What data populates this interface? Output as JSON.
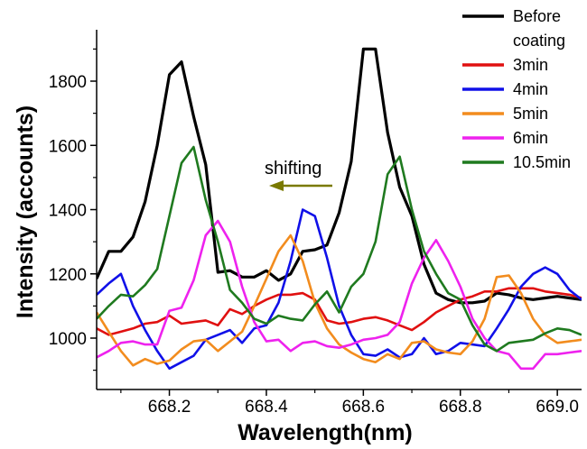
{
  "chart_data": {
    "type": "line",
    "xlabel": "Wavelength(nm)",
    "ylabel": "Intensity (accounts)",
    "xlim": [
      668.05,
      669.05
    ],
    "ylim": [
      840,
      1960
    ],
    "xticks": [
      668.2,
      668.4,
      668.6,
      668.8,
      669.0
    ],
    "xtick_labels": [
      "668.2",
      "668.4",
      "668.6",
      "668.8",
      "669.0"
    ],
    "yticks": [
      1000,
      1200,
      1400,
      1600,
      1800
    ],
    "ytick_labels": [
      "1000",
      "1200",
      "1400",
      "1600",
      "1800"
    ],
    "grid": false,
    "legend_position": "top-right",
    "annotation": {
      "text": "shifting",
      "arrow": "left",
      "color": "#7a7a00"
    },
    "x": [
      668.05,
      668.075,
      668.1,
      668.125,
      668.15,
      668.175,
      668.2,
      668.225,
      668.25,
      668.275,
      668.3,
      668.325,
      668.35,
      668.375,
      668.4,
      668.425,
      668.45,
      668.475,
      668.5,
      668.525,
      668.55,
      668.575,
      668.6,
      668.625,
      668.65,
      668.675,
      668.7,
      668.725,
      668.75,
      668.775,
      668.8,
      668.825,
      668.85,
      668.875,
      668.9,
      668.925,
      668.95,
      668.975,
      669.0,
      669.025,
      669.05
    ],
    "series": [
      {
        "name": "Before coating",
        "color": "#000000",
        "values": [
          1185,
          1270,
          1270,
          1315,
          1425,
          1600,
          1820,
          1860,
          1690,
          1540,
          1205,
          1210,
          1190,
          1190,
          1210,
          1180,
          1200,
          1270,
          1275,
          1290,
          1390,
          1550,
          1900,
          1900,
          1640,
          1470,
          1380,
          1230,
          1140,
          1120,
          1110,
          1110,
          1115,
          1140,
          1135,
          1125,
          1120,
          1125,
          1130,
          1125,
          1120
        ]
      },
      {
        "name": "3min",
        "color": "#e01010",
        "values": [
          1030,
          1010,
          1020,
          1030,
          1045,
          1050,
          1070,
          1045,
          1050,
          1055,
          1040,
          1090,
          1075,
          1100,
          1120,
          1135,
          1135,
          1140,
          1120,
          1055,
          1045,
          1050,
          1060,
          1065,
          1055,
          1040,
          1025,
          1050,
          1080,
          1100,
          1120,
          1130,
          1145,
          1145,
          1155,
          1155,
          1155,
          1145,
          1140,
          1135,
          1125
        ]
      },
      {
        "name": "4min",
        "color": "#1010e8",
        "values": [
          1135,
          1170,
          1200,
          1100,
          1025,
          960,
          905,
          925,
          945,
          995,
          1010,
          1025,
          985,
          1030,
          1040,
          1110,
          1240,
          1400,
          1380,
          1250,
          1100,
          1010,
          950,
          945,
          965,
          940,
          950,
          1000,
          950,
          960,
          985,
          980,
          975,
          1030,
          1090,
          1160,
          1200,
          1220,
          1200,
          1150,
          1120
        ]
      },
      {
        "name": "5min",
        "color": "#f28c1e",
        "values": [
          1080,
          1020,
          960,
          915,
          935,
          920,
          930,
          965,
          990,
          995,
          960,
          990,
          1020,
          1100,
          1185,
          1270,
          1320,
          1240,
          1110,
          1030,
          980,
          955,
          935,
          925,
          950,
          935,
          985,
          990,
          965,
          955,
          950,
          990,
          1060,
          1190,
          1195,
          1140,
          1060,
          1010,
          985,
          990,
          995
        ]
      },
      {
        "name": "6min",
        "color": "#ee22ee",
        "values": [
          940,
          960,
          985,
          990,
          980,
          980,
          1085,
          1095,
          1180,
          1320,
          1365,
          1300,
          1160,
          1050,
          990,
          995,
          960,
          985,
          990,
          975,
          970,
          980,
          995,
          1000,
          1010,
          1050,
          1170,
          1250,
          1305,
          1240,
          1160,
          1060,
          1000,
          960,
          950,
          905,
          905,
          950,
          950,
          955,
          960
        ]
      },
      {
        "name": "10.5min",
        "color": "#1f7a1f",
        "values": [
          1060,
          1100,
          1135,
          1130,
          1165,
          1215,
          1380,
          1545,
          1595,
          1430,
          1300,
          1150,
          1110,
          1060,
          1045,
          1070,
          1060,
          1055,
          1105,
          1145,
          1080,
          1160,
          1200,
          1300,
          1510,
          1565,
          1400,
          1270,
          1200,
          1140,
          1120,
          1040,
          980,
          960,
          985,
          990,
          995,
          1015,
          1030,
          1025,
          1010
        ]
      }
    ]
  }
}
